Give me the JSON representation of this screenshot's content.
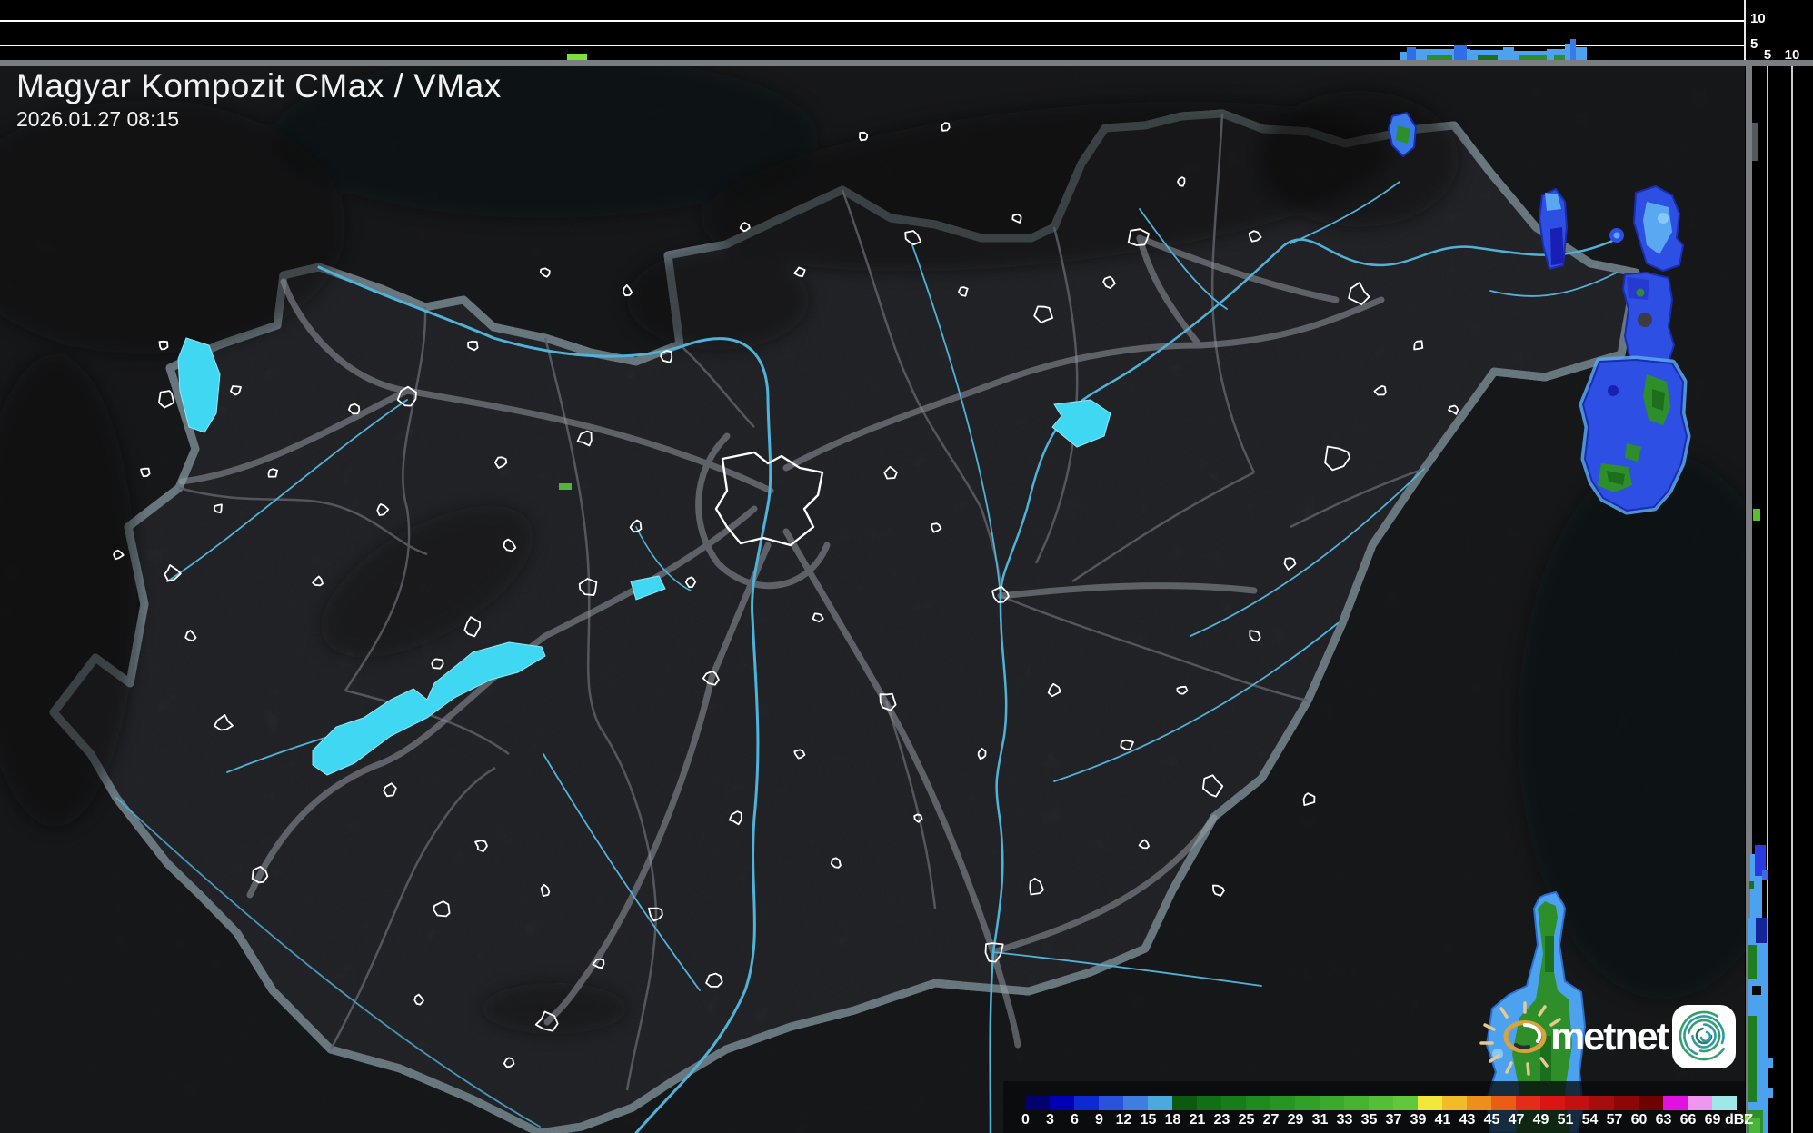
{
  "header": {
    "title": "Magyar Kompozit CMax / VMax",
    "timestamp": "2026.01.27 08:15"
  },
  "axes": {
    "top_profile_km": [
      "10",
      "5"
    ],
    "side_profile_km": [
      "5",
      "10"
    ]
  },
  "legend": {
    "unit": "dBZ",
    "ticks": [
      "0",
      "3",
      "6",
      "9",
      "12",
      "15",
      "18",
      "21",
      "23",
      "25",
      "27",
      "29",
      "31",
      "33",
      "35",
      "37",
      "39",
      "41",
      "43",
      "45",
      "47",
      "49",
      "51",
      "54",
      "57",
      "60",
      "63",
      "66",
      "69"
    ],
    "colors": [
      "#04006e",
      "#0000b4",
      "#0d2ad2",
      "#2a52dc",
      "#3f7ede",
      "#4aaade",
      "#0b5a10",
      "#117016",
      "#177d19",
      "#1f8a1f",
      "#279522",
      "#31a027",
      "#3baa2c",
      "#46b431",
      "#53be36",
      "#62c83b",
      "#f2e83a",
      "#f2bb28",
      "#ee8e1c",
      "#e95d15",
      "#e42d18",
      "#da1513",
      "#c11111",
      "#a60d0d",
      "#8d0707",
      "#6d0202",
      "#e112e1",
      "#ef97ef",
      "#9fe8e8"
    ]
  },
  "logo": {
    "brand": "metnet"
  },
  "colors": {
    "water": "#40d7f3",
    "river": "#4fb3d9",
    "country_border": "#7d8085",
    "echo_blue": "#2e4fe3",
    "echo_light_blue": "#5aa8f2",
    "echo_green": "#2e8f2a",
    "panel_bg": "#000000"
  }
}
